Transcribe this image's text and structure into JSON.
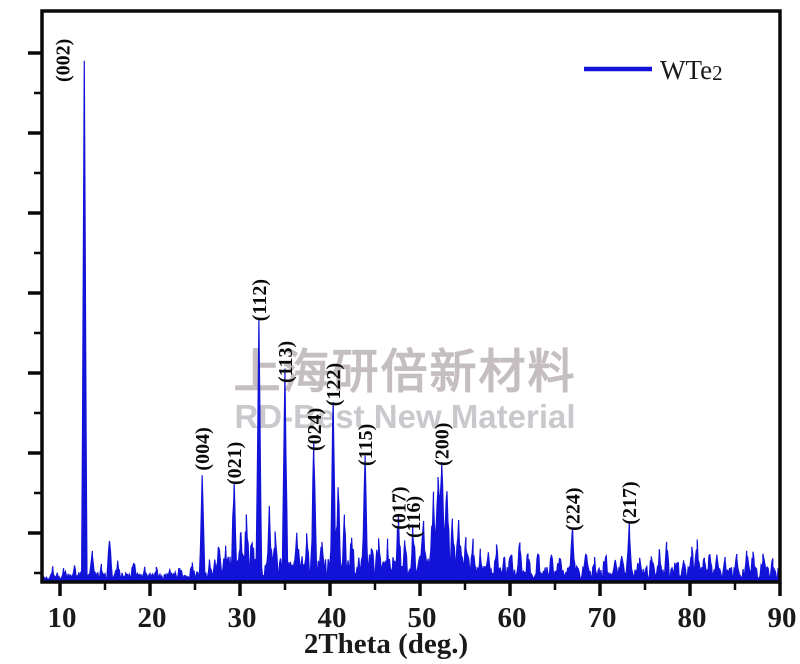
{
  "colors": {
    "series": "#1212d8",
    "axis": "#0a0a0a",
    "peak_label": "#0a0a0a",
    "tick_label": "#1a1a1a",
    "watermark_cn": "#c5bec1",
    "watermark_en": "#c9c9cd",
    "background": "#ffffff"
  },
  "chart_data": {
    "type": "line",
    "variant": "xrd-powder-pattern",
    "title": "",
    "xlabel": "2Theta (deg.)",
    "ylabel": "",
    "xlim": [
      8,
      90
    ],
    "x_major_ticks": [
      10,
      20,
      30,
      40,
      50,
      60,
      70,
      80,
      90
    ],
    "x_minor_ticks": [
      15,
      25,
      35,
      45,
      55,
      65,
      75,
      85
    ],
    "y_axis": {
      "tick_labels_visible": false,
      "major_tick_count": 7,
      "minor_ticks_between": true
    },
    "grid": "off",
    "legend": {
      "position": "top-right",
      "series_label_main": "WTe",
      "series_label_sub": "2"
    },
    "intensity_units": "relative (strongest (002) peak = 1000)",
    "noise_level": "dense baseline speckle ~5-60 units, strongest between 27-56 deg",
    "watermark": {
      "line1": "上海研倍新材料",
      "line2": "RD-Best New Material"
    },
    "peaks": [
      {
        "two_theta": 12.7,
        "intensity": 1000,
        "hkl": "(002)"
      },
      {
        "two_theta": 25.8,
        "intensity": 195,
        "hkl": "(004)"
      },
      {
        "two_theta": 29.35,
        "intensity": 167,
        "hkl": "(021)"
      },
      {
        "two_theta": 32.1,
        "intensity": 485,
        "hkl": "(112)"
      },
      {
        "two_theta": 35.0,
        "intensity": 365,
        "hkl": "(113)"
      },
      {
        "two_theta": 38.2,
        "intensity": 233,
        "hkl": "(024)"
      },
      {
        "two_theta": 40.35,
        "intensity": 320,
        "hkl": "(122)"
      },
      {
        "two_theta": 43.9,
        "intensity": 204,
        "hkl": "(115)"
      },
      {
        "two_theta": 47.6,
        "intensity": 80,
        "hkl": "(017)"
      },
      {
        "two_theta": 49.2,
        "intensity": 64,
        "hkl": "(116)"
      },
      {
        "two_theta": 52.4,
        "intensity": 204,
        "hkl": "(200)",
        "w": 0.35
      },
      {
        "two_theta": 66.95,
        "intensity": 78,
        "hkl": "(224)"
      },
      {
        "two_theta": 73.25,
        "intensity": 90,
        "hkl": "(217)"
      },
      {
        "two_theta": 9.2,
        "intensity": 12
      },
      {
        "two_theta": 10.4,
        "intensity": 10
      },
      {
        "two_theta": 11.6,
        "intensity": 16
      },
      {
        "two_theta": 13.6,
        "intensity": 45
      },
      {
        "two_theta": 14.6,
        "intensity": 22
      },
      {
        "two_theta": 15.5,
        "intensity": 66,
        "w": 0.3
      },
      {
        "two_theta": 16.4,
        "intensity": 24
      },
      {
        "two_theta": 18.2,
        "intensity": 28
      },
      {
        "two_theta": 19.4,
        "intensity": 12
      },
      {
        "two_theta": 20.7,
        "intensity": 14
      },
      {
        "two_theta": 22.1,
        "intensity": 10
      },
      {
        "two_theta": 23.3,
        "intensity": 12
      },
      {
        "two_theta": 24.7,
        "intensity": 22
      },
      {
        "two_theta": 26.6,
        "intensity": 26
      },
      {
        "two_theta": 27.6,
        "intensity": 40
      },
      {
        "two_theta": 28.4,
        "intensity": 30
      },
      {
        "two_theta": 30.05,
        "intensity": 66
      },
      {
        "two_theta": 30.7,
        "intensity": 84
      },
      {
        "two_theta": 31.35,
        "intensity": 42
      },
      {
        "two_theta": 33.25,
        "intensity": 105
      },
      {
        "two_theta": 33.9,
        "intensity": 56
      },
      {
        "two_theta": 36.3,
        "intensity": 64
      },
      {
        "two_theta": 37.4,
        "intensity": 45
      },
      {
        "two_theta": 39.1,
        "intensity": 52
      },
      {
        "two_theta": 40.9,
        "intensity": 148,
        "w": 0.3
      },
      {
        "two_theta": 41.6,
        "intensity": 92
      },
      {
        "two_theta": 42.4,
        "intensity": 46
      },
      {
        "two_theta": 44.6,
        "intensity": 34
      },
      {
        "two_theta": 45.4,
        "intensity": 46
      },
      {
        "two_theta": 46.4,
        "intensity": 36
      },
      {
        "two_theta": 48.3,
        "intensity": 32
      },
      {
        "two_theta": 50.4,
        "intensity": 72,
        "w": 0.3
      },
      {
        "two_theta": 51.5,
        "intensity": 132,
        "w": 0.35
      },
      {
        "two_theta": 52.0,
        "intensity": 165,
        "w": 0.3
      },
      {
        "two_theta": 53.0,
        "intensity": 152,
        "w": 0.35
      },
      {
        "two_theta": 53.6,
        "intensity": 92,
        "w": 0.3
      },
      {
        "two_theta": 54.3,
        "intensity": 85
      },
      {
        "two_theta": 55.1,
        "intensity": 45
      },
      {
        "two_theta": 55.9,
        "intensity": 33
      },
      {
        "two_theta": 56.7,
        "intensity": 42
      },
      {
        "two_theta": 57.6,
        "intensity": 28
      },
      {
        "two_theta": 58.5,
        "intensity": 48
      },
      {
        "two_theta": 59.3,
        "intensity": 30
      },
      {
        "two_theta": 60.1,
        "intensity": 40
      },
      {
        "two_theta": 61.1,
        "intensity": 58
      },
      {
        "two_theta": 62.0,
        "intensity": 34
      },
      {
        "two_theta": 63.1,
        "intensity": 38
      },
      {
        "two_theta": 64.6,
        "intensity": 46
      },
      {
        "two_theta": 65.5,
        "intensity": 26
      },
      {
        "two_theta": 68.5,
        "intensity": 38
      },
      {
        "two_theta": 69.4,
        "intensity": 24
      },
      {
        "two_theta": 70.6,
        "intensity": 40
      },
      {
        "two_theta": 71.6,
        "intensity": 26
      },
      {
        "two_theta": 72.4,
        "intensity": 24
      },
      {
        "two_theta": 74.4,
        "intensity": 26
      },
      {
        "two_theta": 75.7,
        "intensity": 30
      },
      {
        "two_theta": 76.6,
        "intensity": 34
      },
      {
        "two_theta": 77.4,
        "intensity": 56
      },
      {
        "two_theta": 78.5,
        "intensity": 30
      },
      {
        "two_theta": 79.3,
        "intensity": 26
      },
      {
        "two_theta": 80.2,
        "intensity": 40
      },
      {
        "two_theta": 80.8,
        "intensity": 55
      },
      {
        "two_theta": 81.6,
        "intensity": 30
      },
      {
        "two_theta": 82.2,
        "intensity": 40
      },
      {
        "two_theta": 83.0,
        "intensity": 26
      },
      {
        "two_theta": 83.9,
        "intensity": 28
      },
      {
        "two_theta": 85.2,
        "intensity": 30
      },
      {
        "two_theta": 86.3,
        "intensity": 38
      },
      {
        "two_theta": 87.0,
        "intensity": 34
      },
      {
        "two_theta": 88.1,
        "intensity": 30
      },
      {
        "two_theta": 89.2,
        "intensity": 24
      }
    ]
  }
}
